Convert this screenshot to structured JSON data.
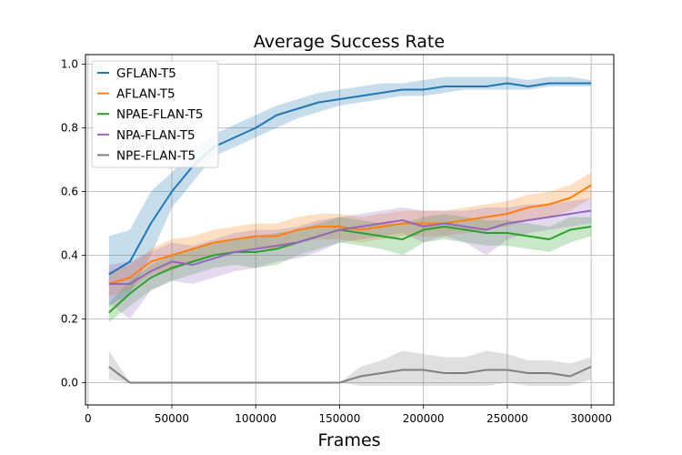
{
  "chart_data": {
    "type": "line",
    "title": "Average Success Rate",
    "xlabel": "Frames",
    "ylabel": "",
    "xlim": [
      -1500,
      313500
    ],
    "ylim": [
      -0.07,
      1.03
    ],
    "xticks": [
      0,
      50000,
      100000,
      150000,
      200000,
      250000,
      300000
    ],
    "xtick_labels": [
      "0",
      "50000",
      "100000",
      "150000",
      "200000",
      "250000",
      "300000"
    ],
    "yticks": [
      0.0,
      0.2,
      0.4,
      0.6,
      0.8,
      1.0
    ],
    "ytick_labels": [
      "0.0",
      "0.2",
      "0.4",
      "0.6",
      "0.8",
      "1.0"
    ],
    "grid": true,
    "legend_position": "top-left",
    "x": [
      12500,
      25000,
      37500,
      50000,
      62500,
      75000,
      87500,
      100000,
      112500,
      125000,
      137500,
      150000,
      162500,
      175000,
      187500,
      200000,
      212500,
      225000,
      237500,
      250000,
      262500,
      275000,
      287500,
      300000
    ],
    "series": [
      {
        "name": "GFLAN-T5",
        "color": "#1f77b4",
        "values": [
          0.34,
          0.38,
          0.5,
          0.6,
          0.68,
          0.74,
          0.77,
          0.8,
          0.84,
          0.86,
          0.88,
          0.89,
          0.9,
          0.91,
          0.92,
          0.92,
          0.93,
          0.93,
          0.93,
          0.94,
          0.93,
          0.94,
          0.94,
          0.94
        ],
        "lower": [
          0.24,
          0.28,
          0.4,
          0.55,
          0.63,
          0.71,
          0.74,
          0.77,
          0.8,
          0.83,
          0.85,
          0.87,
          0.88,
          0.89,
          0.9,
          0.9,
          0.91,
          0.92,
          0.92,
          0.92,
          0.92,
          0.93,
          0.93,
          0.93
        ],
        "upper": [
          0.46,
          0.48,
          0.6,
          0.66,
          0.73,
          0.78,
          0.81,
          0.84,
          0.87,
          0.89,
          0.91,
          0.92,
          0.93,
          0.94,
          0.94,
          0.95,
          0.96,
          0.96,
          0.96,
          0.96,
          0.95,
          0.96,
          0.96,
          0.95
        ]
      },
      {
        "name": "AFLAN-T5",
        "color": "#ff7f0e",
        "values": [
          0.31,
          0.33,
          0.38,
          0.4,
          0.42,
          0.44,
          0.45,
          0.46,
          0.46,
          0.48,
          0.49,
          0.49,
          0.48,
          0.49,
          0.5,
          0.5,
          0.5,
          0.51,
          0.52,
          0.53,
          0.55,
          0.56,
          0.58,
          0.62
        ],
        "lower": [
          0.27,
          0.29,
          0.34,
          0.35,
          0.38,
          0.4,
          0.41,
          0.42,
          0.42,
          0.44,
          0.45,
          0.45,
          0.44,
          0.45,
          0.46,
          0.46,
          0.46,
          0.47,
          0.48,
          0.49,
          0.51,
          0.52,
          0.54,
          0.58
        ],
        "upper": [
          0.35,
          0.37,
          0.42,
          0.45,
          0.46,
          0.48,
          0.49,
          0.5,
          0.5,
          0.52,
          0.53,
          0.53,
          0.52,
          0.53,
          0.54,
          0.54,
          0.54,
          0.55,
          0.56,
          0.57,
          0.59,
          0.6,
          0.62,
          0.66
        ]
      },
      {
        "name": "NPAE-FLAN-T5",
        "color": "#2ca02c",
        "values": [
          0.22,
          0.28,
          0.33,
          0.36,
          0.38,
          0.4,
          0.41,
          0.41,
          0.42,
          0.44,
          0.46,
          0.48,
          0.47,
          0.46,
          0.45,
          0.48,
          0.49,
          0.48,
          0.47,
          0.47,
          0.46,
          0.45,
          0.48,
          0.49
        ],
        "lower": [
          0.19,
          0.24,
          0.29,
          0.32,
          0.34,
          0.36,
          0.37,
          0.36,
          0.37,
          0.4,
          0.42,
          0.44,
          0.43,
          0.42,
          0.4,
          0.44,
          0.45,
          0.44,
          0.43,
          0.43,
          0.42,
          0.41,
          0.44,
          0.46
        ],
        "upper": [
          0.25,
          0.32,
          0.37,
          0.4,
          0.42,
          0.44,
          0.45,
          0.46,
          0.47,
          0.48,
          0.5,
          0.52,
          0.51,
          0.5,
          0.5,
          0.52,
          0.53,
          0.52,
          0.51,
          0.51,
          0.5,
          0.49,
          0.52,
          0.52
        ]
      },
      {
        "name": "NPA-FLAN-T5",
        "color": "#9467bd",
        "values": [
          0.31,
          0.31,
          0.35,
          0.38,
          0.37,
          0.39,
          0.41,
          0.42,
          0.43,
          0.44,
          0.46,
          0.48,
          0.49,
          0.5,
          0.51,
          0.49,
          0.5,
          0.49,
          0.48,
          0.5,
          0.51,
          0.52,
          0.53,
          0.54
        ],
        "lower": [
          0.25,
          0.2,
          0.29,
          0.32,
          0.31,
          0.33,
          0.35,
          0.36,
          0.38,
          0.39,
          0.41,
          0.44,
          0.45,
          0.46,
          0.47,
          0.44,
          0.46,
          0.44,
          0.4,
          0.45,
          0.47,
          0.48,
          0.49,
          0.5
        ],
        "upper": [
          0.37,
          0.38,
          0.41,
          0.44,
          0.43,
          0.45,
          0.47,
          0.48,
          0.48,
          0.49,
          0.51,
          0.52,
          0.53,
          0.54,
          0.55,
          0.54,
          0.54,
          0.54,
          0.55,
          0.55,
          0.56,
          0.56,
          0.57,
          0.58
        ]
      },
      {
        "name": "NPE-FLAN-T5",
        "color": "#7f7f7f",
        "values": [
          0.05,
          0.0,
          0.0,
          0.0,
          0.0,
          0.0,
          0.0,
          0.0,
          0.0,
          0.0,
          0.0,
          0.0,
          0.02,
          0.03,
          0.04,
          0.04,
          0.03,
          0.03,
          0.04,
          0.04,
          0.03,
          0.03,
          0.02,
          0.05
        ],
        "lower": [
          0.01,
          0.0,
          0.0,
          0.0,
          0.0,
          0.0,
          0.0,
          0.0,
          0.0,
          0.0,
          0.0,
          0.0,
          -0.01,
          -0.01,
          -0.01,
          -0.01,
          -0.01,
          -0.01,
          -0.01,
          0.0,
          -0.01,
          -0.01,
          -0.01,
          0.01
        ],
        "upper": [
          0.1,
          0.0,
          0.0,
          0.0,
          0.0,
          0.0,
          0.0,
          0.0,
          0.0,
          0.0,
          0.0,
          0.0,
          0.05,
          0.07,
          0.1,
          0.09,
          0.08,
          0.08,
          0.1,
          0.09,
          0.07,
          0.07,
          0.06,
          0.08
        ]
      }
    ]
  }
}
